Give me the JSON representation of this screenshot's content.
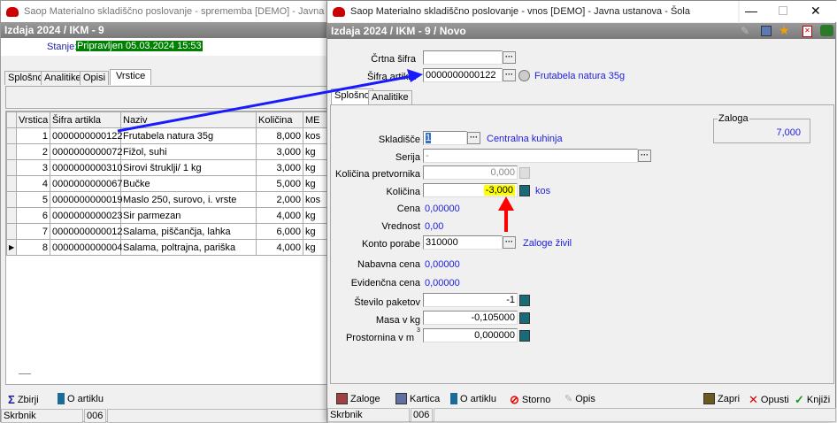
{
  "left_window": {
    "title": "Saop Materialno skladiščno poslovanje - sprememba [DEMO] - Javna ustanova",
    "header": "Izdaja 2024 / IKM - 9",
    "stanje_label": "Stanje:",
    "stanje_value": "Pripravljen 05.03.2024 15:53",
    "tabs": [
      "Splošno",
      "Analitike",
      "Opisi",
      "Vrstice"
    ],
    "active_tab": "Vrstice",
    "grid": {
      "columns": [
        "Vrstica",
        "Šifra artikla",
        "Naziv",
        "Količina",
        "ME"
      ],
      "rows": [
        [
          "1",
          "0000000000122",
          "Frutabela natura 35g",
          "8,000",
          "kos"
        ],
        [
          "2",
          "0000000000072",
          "Fižol, suhi",
          "3,000",
          "kg"
        ],
        [
          "3",
          "0000000000310",
          "Sirovi štruklji/ 1 kg",
          "3,000",
          "kg"
        ],
        [
          "4",
          "0000000000067",
          "Bučke",
          "5,000",
          "kg"
        ],
        [
          "5",
          "0000000000019",
          "Maslo 250, surovo, i. vrste",
          "2,000",
          "kos"
        ],
        [
          "6",
          "0000000000023",
          "Sir parmezan",
          "4,000",
          "kg"
        ],
        [
          "7",
          "0000000000012",
          "Salama, piščančja, lahka",
          "6,000",
          "kg"
        ],
        [
          "8",
          "0000000000004",
          "Salama, poltrajna, pariška",
          "4,000",
          "kg"
        ]
      ],
      "current_row": 8
    },
    "toolbar": {
      "zbirni": "Zbirji",
      "o_artiklu": "O artiklu"
    },
    "status": {
      "user": "Skrbnik",
      "code": "006"
    }
  },
  "right_window": {
    "title": "Saop Materialno skladiščno poslovanje - vnos [DEMO] - Javna ustanova - Šola",
    "header": "Izdaja 2024 / IKM - 9 / Novo",
    "fields": {
      "crtna_sifra": {
        "label": "Črtna šifra",
        "value": ""
      },
      "sifra_artikla": {
        "label": "Šifra artikla",
        "value": "0000000000122",
        "desc": "Frutabela natura 35g"
      },
      "skladisce": {
        "label": "Skladišče",
        "value": "1",
        "desc": "Centralna kuhinja"
      },
      "serija": {
        "label": "Serija",
        "value": "-"
      },
      "kolicina_pretvornika": {
        "label": "Količina pretvornika",
        "value": "0,000"
      },
      "kolicina": {
        "label": "Količina",
        "value": "-3,000",
        "unit": "kos"
      },
      "cena": {
        "label": "Cena",
        "value": "0,00000"
      },
      "vrednost": {
        "label": "Vrednost",
        "value": "0,00"
      },
      "konto_porabe": {
        "label": "Konto porabe",
        "value": "310000",
        "desc": "Zaloge živil"
      },
      "nabavna_cena": {
        "label": "Nabavna cena",
        "value": "0,00000"
      },
      "evidencna_cena": {
        "label": "Evidenčna cena",
        "value": "0,00000"
      },
      "stevilo_paketov": {
        "label": "Število paketov",
        "value": "-1"
      },
      "masa": {
        "label": "Masa v kg",
        "value": "-0,105000"
      },
      "prostornina": {
        "label": "Prostornina v m",
        "sup": "3",
        "value": "0,000000"
      }
    },
    "tabs": [
      "Splošno",
      "Analitike"
    ],
    "active_tab": "Splošno",
    "zaloga": {
      "label": "Zaloga",
      "value": "7,000"
    },
    "toolbar": {
      "zaloge": "Zaloge",
      "kartica": "Kartica",
      "o_artiklu": "O artiklu",
      "storno": "Storno",
      "opis": "Opis",
      "zapri": "Zapri",
      "opusti": "Opusti",
      "knjizi": "Knjiži"
    },
    "status": {
      "user": "Skrbnik",
      "code": "006"
    }
  },
  "colors": {
    "stanje_bg": "#008000",
    "highlight": "#ffff00",
    "annotation_blue": "#1a1aff",
    "annotation_red": "#ff0000",
    "link_blue": "#2020e0"
  }
}
